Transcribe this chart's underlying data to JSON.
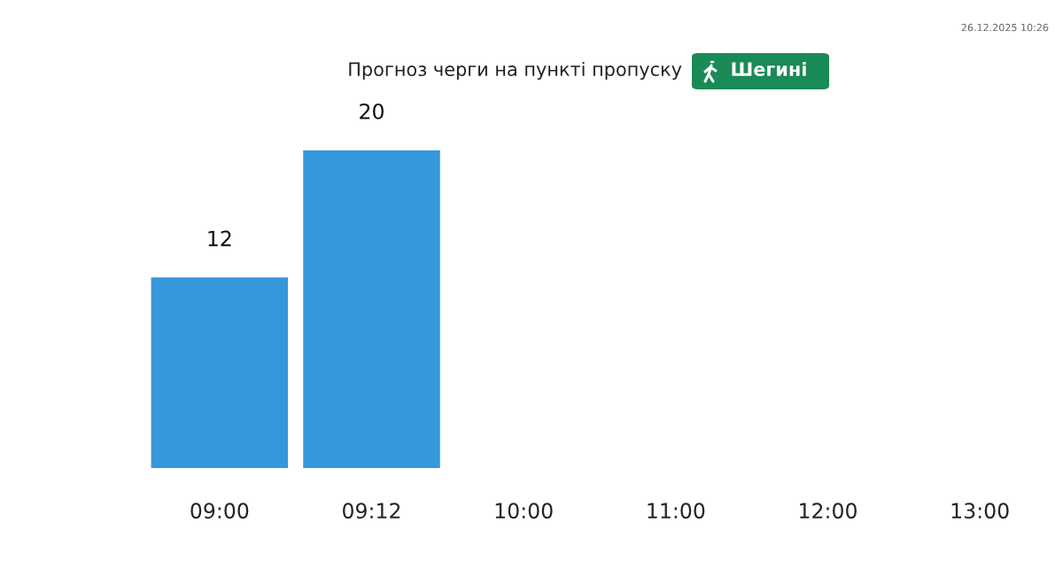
{
  "chart_data": {
    "type": "bar",
    "title": "Прогноз черги на пункті пропуску",
    "subtitle": "Шегині",
    "categories": [
      "09:00",
      "09:12",
      "10:00",
      "11:00",
      "12:00",
      "13:00"
    ],
    "values": [
      12,
      20,
      null,
      null,
      null,
      null
    ],
    "color": "#3598db",
    "data_labels": true,
    "annotations": [
      "26.12.2025 10:26"
    ]
  }
}
